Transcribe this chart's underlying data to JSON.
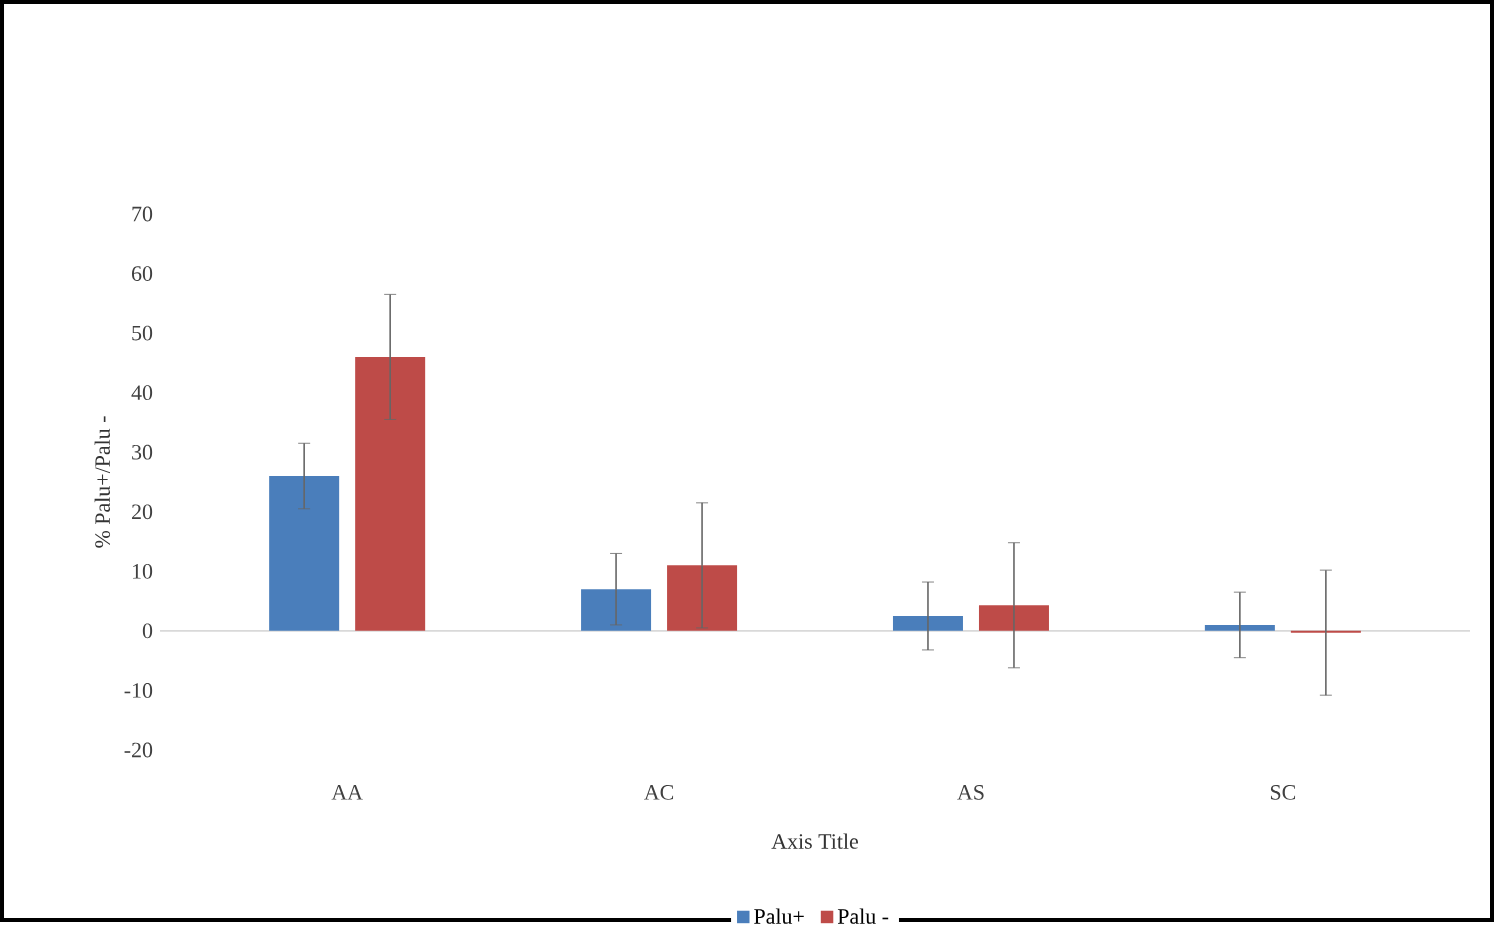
{
  "chart_data": {
    "type": "bar",
    "xlabel": "Axis Title",
    "ylabel": "% Palu+/Palu -",
    "categories": [
      "AA",
      "AC",
      "AS",
      "SC"
    ],
    "series": [
      {
        "name": "Palu+",
        "color": "#4a7ebb",
        "values": [
          26,
          7,
          2.5,
          1
        ],
        "errors": [
          5.5,
          6,
          5.7,
          5.5
        ]
      },
      {
        "name": "Palu -",
        "color": "#be4b48",
        "values": [
          46,
          11,
          4.3,
          -0.3
        ],
        "errors": [
          10.5,
          10.5,
          10.5,
          10.5
        ]
      }
    ],
    "ylim": [
      -20,
      70
    ],
    "yticks": [
      -20,
      -10,
      0,
      10,
      20,
      30,
      40,
      50,
      60,
      70
    ],
    "grid": false,
    "legend": "bottom",
    "ref_lines": [
      {
        "axis": "y",
        "value": 0,
        "color": "#d9d9d9"
      }
    ]
  }
}
